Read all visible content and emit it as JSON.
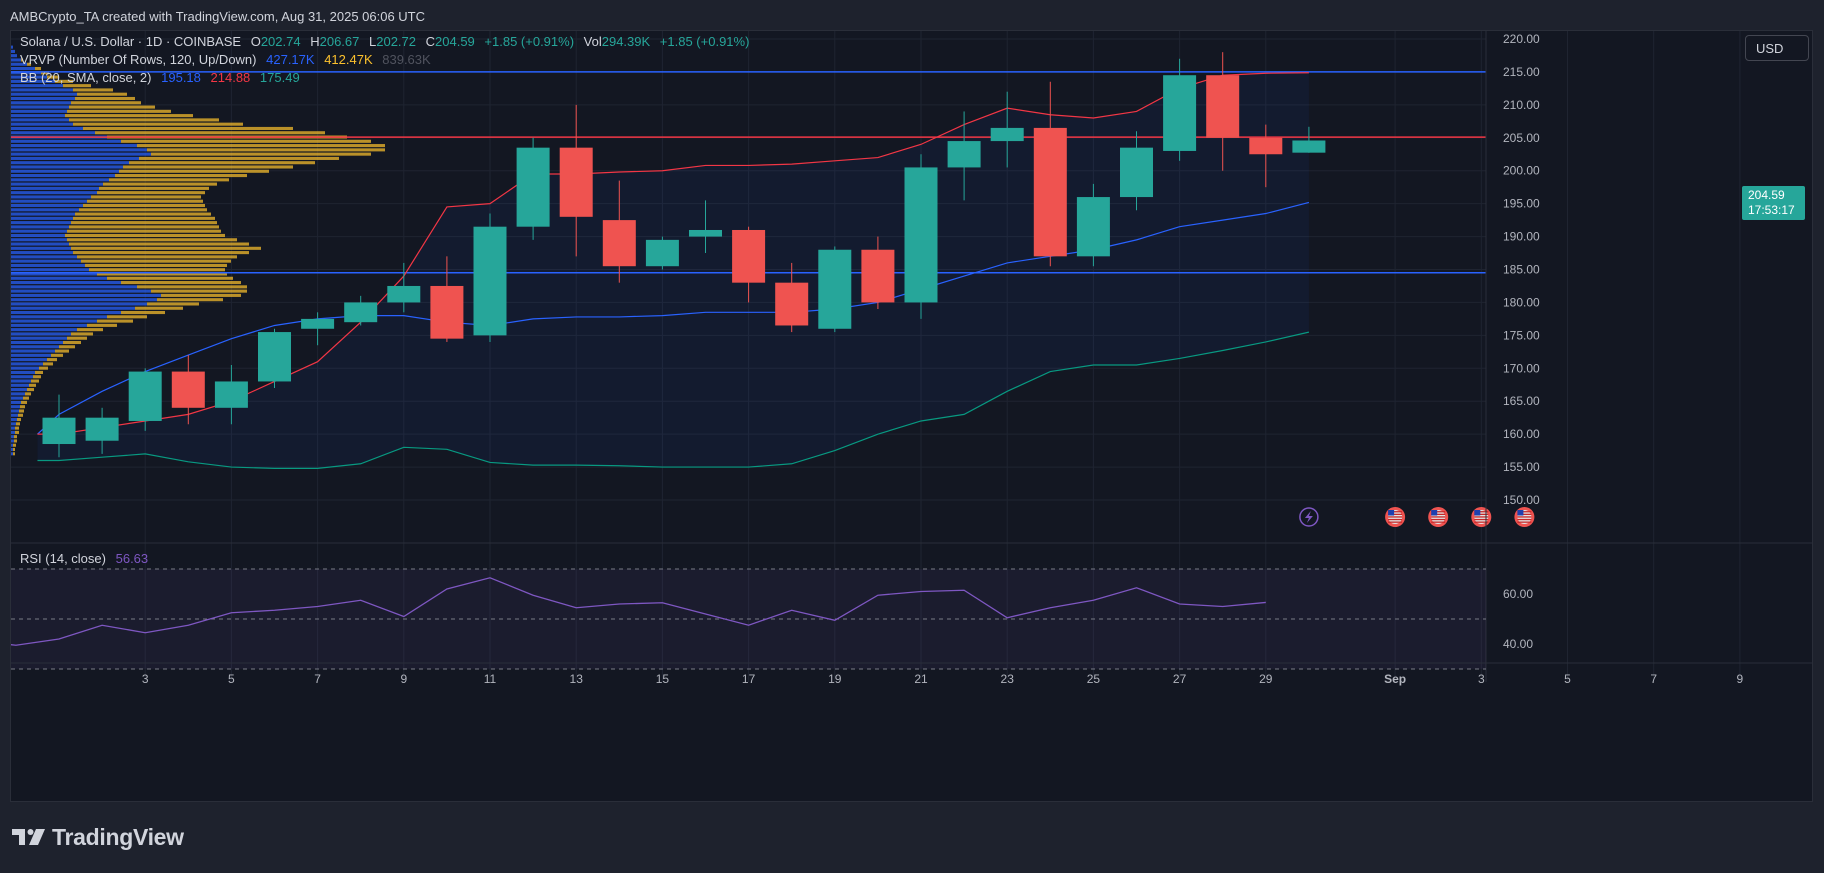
{
  "caption": "AMBCrypto_TA created with TradingView.com, Aug 31, 2025 06:06 UTC",
  "currency_button": "USD",
  "legend": {
    "symbol": "Solana / U.S. Dollar · 1D · COINBASE",
    "o_label": "O",
    "o_val": "202.74",
    "h_label": "H",
    "h_val": "206.67",
    "l_label": "L",
    "l_val": "202.72",
    "c_label": "C",
    "c_val": "204.59",
    "change": "+1.85 (+0.91%)",
    "vol_label": "Vol",
    "vol_val": "294.39K",
    "vol_change": "+1.85 (+0.91%)",
    "vrvp_label": "VRVP (Number Of Rows, 120, Up/Down)",
    "vrvp_up": "427.17K",
    "vrvp_down": "412.47K",
    "vrvp_total": "839.63K",
    "bb_label": "BB (20, SMA, close, 2)",
    "bb_basis": "195.18",
    "bb_upper": "214.88",
    "bb_lower": "175.49",
    "rsi_label": "RSI (14, close)",
    "rsi_val": "56.63"
  },
  "price_tag": {
    "price": "204.59",
    "countdown": "17:53:17"
  },
  "colors": {
    "up": "#26a69a",
    "down": "#ef5350",
    "bb_basis": "#2962ff",
    "bb_upper": "#f23645",
    "bb_lower": "#089981",
    "rsi": "#7e57c2",
    "hline_blue": "#2962ff",
    "hline_red": "#f23645",
    "vp_up": "#2962ff",
    "vp_down": "#fbc02d"
  },
  "footer_brand": "TradingView",
  "chart_data": {
    "type": "candlestick",
    "title": "Solana / U.S. Dollar · 1D · COINBASE",
    "y_ticks": [
      "220.00",
      "215.00",
      "210.00",
      "205.00",
      "200.00",
      "195.00",
      "190.00",
      "185.00",
      "180.00",
      "175.00",
      "170.00",
      "165.00",
      "160.00",
      "155.00",
      "150.00"
    ],
    "ylim": [
      148.5,
      223
    ],
    "x_tick_labels": [
      {
        "day": 3,
        "label": "3"
      },
      {
        "day": 5,
        "label": "5"
      },
      {
        "day": 7,
        "label": "7"
      },
      {
        "day": 9,
        "label": "9"
      },
      {
        "day": 11,
        "label": "11"
      },
      {
        "day": 13,
        "label": "13"
      },
      {
        "day": 15,
        "label": "15"
      },
      {
        "day": 17,
        "label": "17"
      },
      {
        "day": 19,
        "label": "19"
      },
      {
        "day": 21,
        "label": "21"
      },
      {
        "day": 23,
        "label": "23"
      },
      {
        "day": 25,
        "label": "25"
      },
      {
        "day": 27,
        "label": "27"
      },
      {
        "day": 29,
        "label": "29"
      },
      {
        "day": 32,
        "label": "Sep"
      },
      {
        "day": 34,
        "label": "3"
      },
      {
        "day": 36,
        "label": "5"
      },
      {
        "day": 38,
        "label": "7"
      },
      {
        "day": 40,
        "label": "9"
      }
    ],
    "candles": [
      {
        "day": 1,
        "o": 158.5,
        "h": 166.0,
        "l": 156.5,
        "c": 162.5
      },
      {
        "day": 2,
        "o": 159.0,
        "h": 164.0,
        "l": 157.0,
        "c": 162.5
      },
      {
        "day": 3,
        "o": 162.0,
        "h": 170.0,
        "l": 160.5,
        "c": 169.5
      },
      {
        "day": 4,
        "o": 169.5,
        "h": 172.0,
        "l": 161.5,
        "c": 164.0
      },
      {
        "day": 5,
        "o": 164.0,
        "h": 170.5,
        "l": 161.5,
        "c": 168.0
      },
      {
        "day": 6,
        "o": 168.0,
        "h": 176.0,
        "l": 167.0,
        "c": 175.5
      },
      {
        "day": 7,
        "o": 176.0,
        "h": 178.5,
        "l": 173.5,
        "c": 177.5
      },
      {
        "day": 8,
        "o": 177.0,
        "h": 181.0,
        "l": 176.5,
        "c": 180.0
      },
      {
        "day": 9,
        "o": 180.0,
        "h": 186.0,
        "l": 178.5,
        "c": 182.5
      },
      {
        "day": 10,
        "o": 182.5,
        "h": 187.0,
        "l": 174.0,
        "c": 174.5
      },
      {
        "day": 11,
        "o": 175.0,
        "h": 193.5,
        "l": 174.0,
        "c": 191.5
      },
      {
        "day": 12,
        "o": 191.5,
        "h": 205.0,
        "l": 189.5,
        "c": 203.5
      },
      {
        "day": 13,
        "o": 203.5,
        "h": 210.0,
        "l": 187.0,
        "c": 193.0
      },
      {
        "day": 14,
        "o": 192.5,
        "h": 198.5,
        "l": 183.0,
        "c": 185.5
      },
      {
        "day": 15,
        "o": 185.5,
        "h": 190.0,
        "l": 185.0,
        "c": 189.5
      },
      {
        "day": 16,
        "o": 190.0,
        "h": 195.5,
        "l": 187.5,
        "c": 191.0
      },
      {
        "day": 17,
        "o": 191.0,
        "h": 191.5,
        "l": 180.0,
        "c": 183.0
      },
      {
        "day": 18,
        "o": 183.0,
        "h": 186.0,
        "l": 175.5,
        "c": 176.5
      },
      {
        "day": 19,
        "o": 176.0,
        "h": 188.5,
        "l": 175.5,
        "c": 188.0
      },
      {
        "day": 20,
        "o": 188.0,
        "h": 190.0,
        "l": 179.0,
        "c": 180.0
      },
      {
        "day": 21,
        "o": 180.0,
        "h": 202.5,
        "l": 177.5,
        "c": 200.5
      },
      {
        "day": 22,
        "o": 200.5,
        "h": 209.0,
        "l": 195.5,
        "c": 204.5
      },
      {
        "day": 23,
        "o": 204.5,
        "h": 212.0,
        "l": 200.5,
        "c": 206.5
      },
      {
        "day": 24,
        "o": 206.5,
        "h": 213.5,
        "l": 185.5,
        "c": 187.0
      },
      {
        "day": 25,
        "o": 187.0,
        "h": 198.0,
        "l": 185.5,
        "c": 196.0
      },
      {
        "day": 26,
        "o": 196.0,
        "h": 206.0,
        "l": 194.0,
        "c": 203.5
      },
      {
        "day": 27,
        "o": 203.0,
        "h": 217.0,
        "l": 201.5,
        "c": 214.5
      },
      {
        "day": 28,
        "o": 214.5,
        "h": 218.0,
        "l": 200.0,
        "c": 205.0
      },
      {
        "day": 29,
        "o": 205.0,
        "h": 207.0,
        "l": 197.5,
        "c": 202.5
      },
      {
        "day": 30,
        "o": 202.74,
        "h": 206.67,
        "l": 202.72,
        "c": 204.59
      }
    ],
    "bb_upper": [
      [
        0.5,
        160
      ],
      [
        1,
        160
      ],
      [
        2,
        161
      ],
      [
        3,
        162
      ],
      [
        4,
        163
      ],
      [
        5,
        165
      ],
      [
        6,
        168
      ],
      [
        7,
        171
      ],
      [
        8,
        177
      ],
      [
        9,
        184
      ],
      [
        10,
        194.5
      ],
      [
        11,
        195
      ],
      [
        12,
        199.5
      ],
      [
        13,
        199.5
      ],
      [
        14,
        199.8
      ],
      [
        15,
        200
      ],
      [
        16,
        200.8
      ],
      [
        17,
        200.8
      ],
      [
        18,
        201
      ],
      [
        19,
        201.5
      ],
      [
        20,
        202
      ],
      [
        21,
        204
      ],
      [
        22,
        207
      ],
      [
        23,
        209.5
      ],
      [
        24,
        208.5
      ],
      [
        25,
        208
      ],
      [
        26,
        209
      ],
      [
        27,
        212.5
      ],
      [
        28,
        214.5
      ],
      [
        29,
        214.8
      ],
      [
        30,
        214.88
      ]
    ],
    "bb_basis": [
      [
        0.5,
        160
      ],
      [
        1,
        163
      ],
      [
        2,
        166.5
      ],
      [
        3,
        169.5
      ],
      [
        4,
        172
      ],
      [
        5,
        174.5
      ],
      [
        6,
        176.5
      ],
      [
        7,
        177.5
      ],
      [
        8,
        178
      ],
      [
        9,
        178
      ],
      [
        10,
        177
      ],
      [
        11,
        176.5
      ],
      [
        12,
        177.5
      ],
      [
        13,
        177.8
      ],
      [
        14,
        177.8
      ],
      [
        15,
        178
      ],
      [
        16,
        178.5
      ],
      [
        17,
        178.5
      ],
      [
        18,
        178.5
      ],
      [
        19,
        179
      ],
      [
        20,
        180
      ],
      [
        21,
        182
      ],
      [
        22,
        184
      ],
      [
        23,
        186
      ],
      [
        24,
        187
      ],
      [
        25,
        188
      ],
      [
        26,
        189.5
      ],
      [
        27,
        191.5
      ],
      [
        28,
        192.5
      ],
      [
        29,
        193.5
      ],
      [
        30,
        195.18
      ]
    ],
    "bb_lower": [
      [
        0.5,
        156
      ],
      [
        1,
        156
      ],
      [
        2,
        156.5
      ],
      [
        3,
        157
      ],
      [
        4,
        155.8
      ],
      [
        5,
        155
      ],
      [
        6,
        154.8
      ],
      [
        7,
        154.8
      ],
      [
        8,
        155.5
      ],
      [
        9,
        158
      ],
      [
        10,
        157.7
      ],
      [
        11,
        155.7
      ],
      [
        12,
        155.3
      ],
      [
        13,
        155.3
      ],
      [
        14,
        155.2
      ],
      [
        15,
        155
      ],
      [
        16,
        155
      ],
      [
        17,
        155
      ],
      [
        18,
        155.5
      ],
      [
        19,
        157.5
      ],
      [
        20,
        160
      ],
      [
        21,
        162
      ],
      [
        22,
        163
      ],
      [
        23,
        166.5
      ],
      [
        24,
        169.5
      ],
      [
        25,
        170.5
      ],
      [
        26,
        170.5
      ],
      [
        27,
        171.5
      ],
      [
        28,
        172.7
      ],
      [
        29,
        174
      ],
      [
        30,
        175.49
      ]
    ],
    "hlines": [
      {
        "price": 215.0,
        "color": "blue"
      },
      {
        "price": 205.1,
        "color": "red"
      },
      {
        "price": 184.5,
        "color": "blue"
      }
    ],
    "volume_profile": {
      "price_top": 219,
      "price_step": 0.65,
      "up": [
        2,
        4,
        6,
        10,
        16,
        24,
        30,
        36,
        44,
        52,
        62,
        66,
        64,
        60,
        58,
        56,
        54,
        58,
        62,
        72,
        84,
        96,
        110,
        126,
        136,
        140,
        128,
        118,
        112,
        108,
        104,
        98,
        92,
        88,
        86,
        80,
        76,
        72,
        68,
        64,
        62,
        60,
        58,
        56,
        54,
        56,
        58,
        60,
        62,
        66,
        70,
        74,
        78,
        86,
        96,
        110,
        126,
        140,
        150,
        146,
        136,
        124,
        110,
        96,
        86,
        76,
        66,
        60,
        56,
        52,
        48,
        44,
        40,
        36,
        32,
        28,
        24,
        22,
        20,
        18,
        16,
        14,
        12,
        10,
        9,
        8,
        7,
        6,
        5,
        4,
        4,
        3,
        3,
        2,
        2,
        2
      ],
      "down": [
        0,
        0,
        0,
        2,
        4,
        6,
        8,
        12,
        18,
        28,
        40,
        50,
        60,
        70,
        86,
        104,
        128,
        150,
        170,
        210,
        230,
        240,
        250,
        248,
        238,
        220,
        200,
        186,
        170,
        150,
        132,
        120,
        114,
        110,
        108,
        110,
        116,
        122,
        128,
        136,
        142,
        146,
        150,
        154,
        160,
        170,
        180,
        190,
        176,
        160,
        150,
        142,
        136,
        130,
        126,
        120,
        110,
        96,
        80,
        66,
        52,
        48,
        44,
        40,
        36,
        30,
        26,
        22,
        20,
        18,
        16,
        14,
        12,
        10,
        10,
        9,
        8,
        8,
        8,
        7,
        7,
        6,
        6,
        6,
        5,
        5,
        5,
        4,
        4,
        4,
        4,
        3,
        3,
        3,
        2,
        2
      ]
    },
    "rsi": {
      "label": "RSI (14, close)",
      "ylim": [
        31,
        80
      ],
      "ticks": [
        "60.00",
        "40.00"
      ],
      "bands": [
        70,
        50,
        30
      ],
      "values": [
        [
          -0.5,
          40.5
        ],
        [
          0,
          39.5
        ],
        [
          1,
          42
        ],
        [
          2,
          47.5
        ],
        [
          3,
          44.5
        ],
        [
          4,
          47.5
        ],
        [
          5,
          52.5
        ],
        [
          6,
          53.5
        ],
        [
          7,
          55
        ],
        [
          8,
          57.5
        ],
        [
          9,
          51
        ],
        [
          10,
          62
        ],
        [
          11,
          66.5
        ],
        [
          12,
          59.5
        ],
        [
          13,
          54.5
        ],
        [
          14,
          56
        ],
        [
          15,
          56.5
        ],
        [
          16,
          52
        ],
        [
          17,
          47.5
        ],
        [
          18,
          53.5
        ],
        [
          19,
          49.5
        ],
        [
          20,
          59.5
        ],
        [
          21,
          61
        ],
        [
          22,
          61.5
        ],
        [
          23,
          50.5
        ],
        [
          24,
          54.5
        ],
        [
          25,
          57.5
        ],
        [
          26,
          62.5
        ],
        [
          27,
          56
        ],
        [
          28,
          55
        ],
        [
          29,
          56.63
        ]
      ]
    },
    "event_markers": [
      {
        "day": 30,
        "kind": "lightning-icon"
      },
      {
        "day": 32,
        "kind": "us-flag-icon"
      },
      {
        "day": 33,
        "kind": "us-flag-icon"
      },
      {
        "day": 34,
        "kind": "us-flag-icon"
      },
      {
        "day": 35,
        "kind": "us-flag-icon"
      }
    ]
  }
}
